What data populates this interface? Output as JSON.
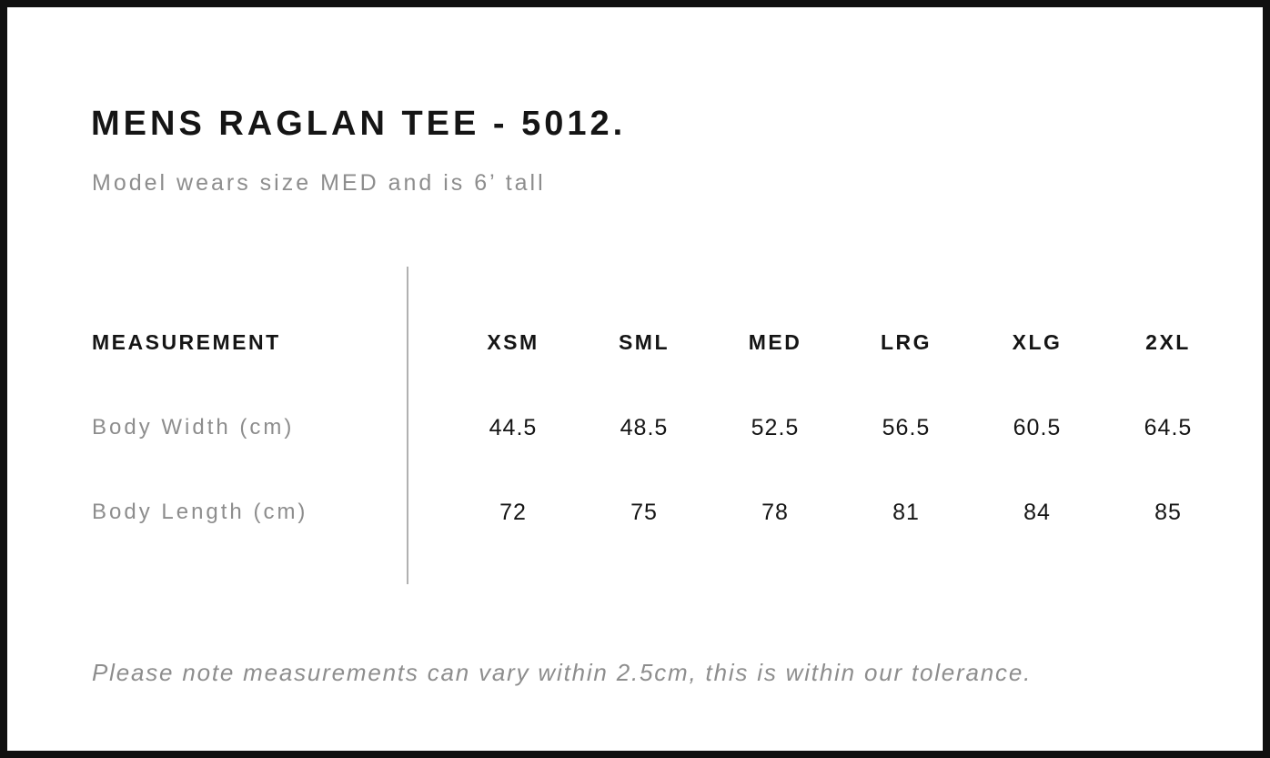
{
  "page": {
    "title": "MENS RAGLAN TEE - 5012.",
    "subtitle": "Model wears size MED and is 6’ tall"
  },
  "size_chart": {
    "measurement_header": "MEASUREMENT",
    "size_headers": [
      "XSM",
      "SML",
      "MED",
      "LRG",
      "XLG",
      "2XL"
    ],
    "rows": [
      {
        "label": "Body Width (cm)",
        "values": [
          "44.5",
          "48.5",
          "52.5",
          "56.5",
          "60.5",
          "64.5"
        ]
      },
      {
        "label": "Body Length (cm)",
        "values": [
          "72",
          "75",
          "78",
          "81",
          "84",
          "85"
        ]
      }
    ]
  },
  "footer": {
    "note": "Please note measurements can vary within 2.5cm, this is within our tolerance."
  },
  "colors": {
    "text_primary": "#151515",
    "text_secondary": "#8d8d8d",
    "divider": "#b1b1b1",
    "frame_border": "#101010"
  }
}
